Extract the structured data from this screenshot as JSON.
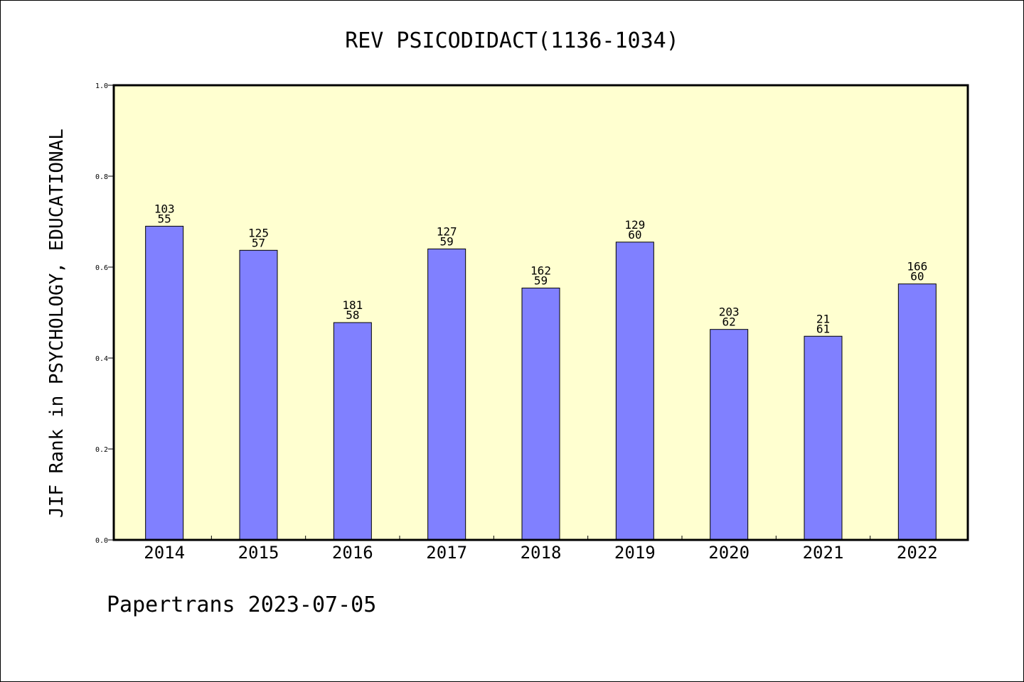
{
  "chart_data": {
    "type": "bar",
    "title": "REV PSICODIDACT(1136-1034)",
    "xlabel": "",
    "ylabel": "JIF Rank in PSYCHOLOGY, EDUCATIONAL",
    "categories": [
      "2014",
      "2015",
      "2016",
      "2017",
      "2018",
      "2019",
      "2020",
      "2021",
      "2022"
    ],
    "values": [
      0.69,
      0.637,
      0.478,
      0.64,
      0.554,
      0.655,
      0.463,
      0.448,
      0.563
    ],
    "bar_labels": [
      [
        "103",
        "55"
      ],
      [
        "125",
        "57"
      ],
      [
        "181",
        "58"
      ],
      [
        "127",
        "59"
      ],
      [
        "162",
        "59"
      ],
      [
        "129",
        "60"
      ],
      [
        "203",
        "62"
      ],
      [
        "21",
        "61"
      ],
      [
        "166",
        "60"
      ]
    ],
    "ylim": [
      0,
      1.0
    ],
    "yticks": [
      "0.0",
      "0.2",
      "0.4",
      "0.6",
      "0.8",
      "1.0"
    ],
    "grid": false,
    "colors": {
      "bar": "#8080ff",
      "plot_background": "#ffffd0",
      "axis": "#000000"
    }
  },
  "footer": "Papertrans 2023-07-05"
}
